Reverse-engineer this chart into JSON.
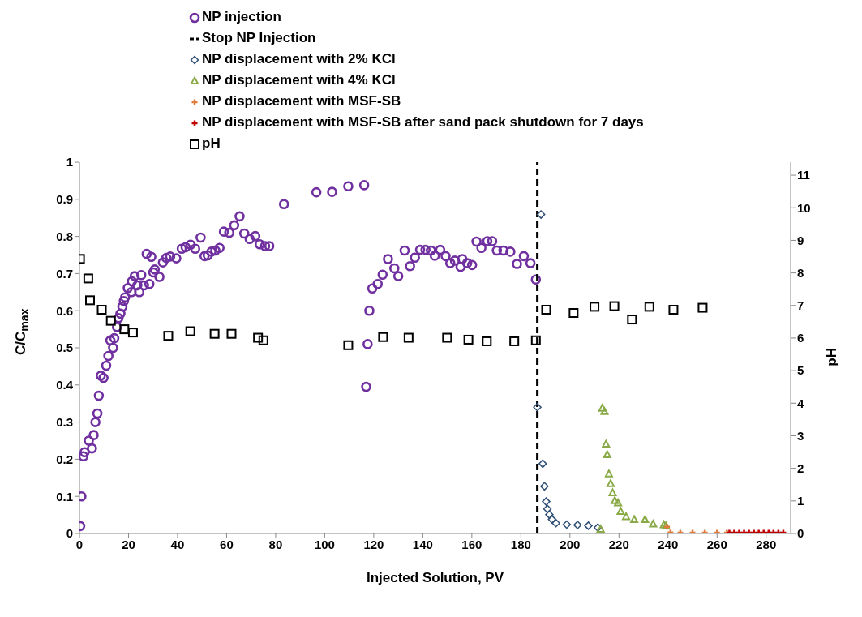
{
  "chart_data": {
    "type": "scatter",
    "xlabel": "Injected Solution, PV",
    "ylabel": "C/C$_{max}$",
    "y2label": "pH",
    "xlim": [
      0,
      290
    ],
    "xticks": [
      0,
      20,
      40,
      60,
      80,
      100,
      120,
      140,
      160,
      180,
      200,
      220,
      240,
      260,
      280
    ],
    "ylim": [
      0,
      1
    ],
    "yticks": [
      0,
      0.1,
      0.2,
      0.3,
      0.4,
      0.5,
      0.6,
      0.7,
      0.8,
      0.9,
      1
    ],
    "y2lim": [
      0,
      11.4
    ],
    "y2ticks": [
      0,
      1,
      2,
      3,
      4,
      5,
      6,
      7,
      8,
      9,
      10,
      11
    ],
    "grid": false,
    "legend": "top left",
    "series": [
      {
        "name": "NP injection",
        "color": "#7030a0",
        "marker": "circle",
        "x": [
          0.3,
          0.8,
          1.6,
          2.1,
          3.8,
          5.1,
          5.8,
          6.5,
          7.3,
          7.9,
          8.7,
          9.8,
          10.9,
          11.8,
          12.6,
          13.7,
          14.2,
          15.3,
          15.9,
          16.7,
          17.5,
          18.1,
          18.6,
          19.7,
          21.2,
          21.4,
          22.5,
          23.6,
          24.4,
          25.2,
          26.3,
          27.4,
          28.5,
          29.3,
          30.1,
          30.7,
          32.6,
          34,
          35.4,
          37,
          39.5,
          41.7,
          43.3,
          45.3,
          47.2,
          49.4,
          51,
          52.3,
          53.8,
          55.4,
          57.1,
          58.9,
          61.1,
          63.1,
          65.3,
          67.2,
          69.4,
          71.7,
          73.5,
          75.7,
          77.4,
          83.4,
          96.6,
          103,
          109.6,
          116.1,
          116.9,
          117.5,
          118.2,
          119.4,
          121.6,
          123.6,
          125.8,
          128.4,
          130,
          132.6,
          134.8,
          136.8,
          138.9,
          141.1,
          143.3,
          144.9,
          147.1,
          149.3,
          151.2,
          153.1,
          155.4,
          156.1,
          158.1,
          160.1,
          161.9,
          163.9,
          166.3,
          168.3,
          170.2,
          172.9,
          175.7,
          178.4,
          181.2,
          183.9,
          186.1
        ],
        "values": [
          0.02,
          0.1,
          0.208,
          0.219,
          0.25,
          0.229,
          0.265,
          0.3,
          0.323,
          0.371,
          0.425,
          0.419,
          0.452,
          0.478,
          0.52,
          0.5,
          0.526,
          0.556,
          0.58,
          0.592,
          0.611,
          0.626,
          0.636,
          0.661,
          0.65,
          0.679,
          0.693,
          0.668,
          0.65,
          0.696,
          0.668,
          0.753,
          0.672,
          0.745,
          0.703,
          0.711,
          0.691,
          0.73,
          0.742,
          0.746,
          0.741,
          0.767,
          0.771,
          0.778,
          0.767,
          0.797,
          0.747,
          0.749,
          0.759,
          0.762,
          0.769,
          0.813,
          0.81,
          0.83,
          0.854,
          0.808,
          0.793,
          0.801,
          0.779,
          0.774,
          0.774,
          0.887,
          0.919,
          0.92,
          0.935,
          0.938,
          0.395,
          0.51,
          0.6,
          0.66,
          0.672,
          0.697,
          0.739,
          0.714,
          0.693,
          0.762,
          0.72,
          0.743,
          0.764,
          0.764,
          0.762,
          0.748,
          0.764,
          0.747,
          0.728,
          0.735,
          0.718,
          0.739,
          0.728,
          0.723,
          0.786,
          0.769,
          0.787,
          0.787,
          0.762,
          0.762,
          0.759,
          0.726,
          0.747,
          0.728,
          0.684
        ]
      },
      {
        "name": "Stop NP Injection",
        "color": "#000000",
        "type": "line",
        "marker": "none",
        "line_style": "dashed",
        "x": [
          186.7,
          186.7,
          186.7
        ],
        "values": [
          0,
          0.5,
          1
        ]
      },
      {
        "name": "NP displacement with 2% KCl",
        "color": "#2f4f75",
        "marker": "diamond",
        "x": [
          186.7,
          188.2,
          188.9,
          189.6,
          190.3,
          190.8,
          191.6,
          192.7,
          194.3,
          198.7,
          203.1,
          207.5,
          211.4
        ],
        "values": [
          0.34,
          0.859,
          0.188,
          0.127,
          0.086,
          0.066,
          0.051,
          0.038,
          0.028,
          0.024,
          0.023,
          0.021,
          0.016
        ]
      },
      {
        "name": "NP displacement with 4% KCl",
        "color": "#8aaa48",
        "marker": "triangle",
        "x": [
          212.5,
          213.2,
          214.1,
          214.7,
          215.2,
          215.9,
          216.6,
          217.4,
          218.3,
          219.6,
          220.7,
          222.9,
          226.2,
          230.6,
          233.9,
          238.3,
          239.1
        ],
        "values": [
          0.011,
          0.337,
          0.328,
          0.24,
          0.212,
          0.16,
          0.134,
          0.109,
          0.088,
          0.082,
          0.059,
          0.045,
          0.037,
          0.037,
          0.025,
          0.023,
          0.02
        ]
      },
      {
        "name": "NP displacement with MSF-SB",
        "color": "#e07b39",
        "marker": "cross",
        "x": [
          239.6,
          241,
          245,
          250,
          255,
          260,
          264
        ],
        "values": [
          0.018,
          0.003,
          0.002,
          0.002,
          0.002,
          0.002,
          0.002
        ]
      },
      {
        "name": "NP displacement with MSF-SB after sand pack shutdown for 7 days",
        "color": "#c00000",
        "marker": "cross",
        "x": [
          265,
          267,
          269,
          271,
          273,
          275,
          277,
          279,
          281,
          283,
          285,
          287
        ],
        "values": [
          0.002,
          0.002,
          0.002,
          0.002,
          0.002,
          0.002,
          0.002,
          0.002,
          0.002,
          0.002,
          0.002,
          0.002
        ]
      },
      {
        "name": "pH",
        "color": "#000000",
        "marker": "square",
        "axis": "y2",
        "x": [
          0.2,
          3.6,
          4.3,
          9.1,
          12.8,
          18.3,
          21.8,
          36.2,
          45.2,
          55.1,
          62,
          72.8,
          75,
          109.6,
          123.8,
          134.2,
          149.9,
          158.6,
          166.1,
          177.3,
          186.1,
          190.3,
          201.5,
          210,
          218.1,
          225.3,
          232.4,
          242.2,
          254.1
        ],
        "values": [
          8.43,
          7.83,
          7.16,
          6.87,
          6.53,
          6.27,
          6.17,
          6.07,
          6.21,
          6.13,
          6.13,
          6.01,
          5.93,
          5.78,
          6.03,
          6.01,
          6.01,
          5.95,
          5.9,
          5.9,
          5.93,
          6.87,
          6.77,
          6.96,
          6.98,
          6.57,
          6.96,
          6.87,
          6.93
        ]
      }
    ]
  }
}
